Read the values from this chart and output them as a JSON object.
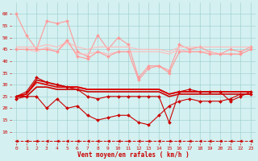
{
  "x": [
    0,
    1,
    2,
    3,
    4,
    5,
    6,
    7,
    8,
    9,
    10,
    11,
    12,
    13,
    14,
    15,
    16,
    17,
    18,
    19,
    20,
    21,
    22,
    23
  ],
  "series": [
    {
      "name": "rafales_max",
      "color": "#ff9999",
      "lw": 0.8,
      "marker": "D",
      "markersize": 2.0,
      "linestyle": "-",
      "values": [
        60,
        51,
        45,
        57,
        56,
        57,
        44,
        42,
        51,
        45,
        50,
        47,
        33,
        38,
        38,
        36,
        47,
        45,
        46,
        44,
        43,
        45,
        44,
        46
      ]
    },
    {
      "name": "rafales_upper",
      "color": "#ffbbbb",
      "lw": 0.8,
      "marker": null,
      "markersize": 0,
      "linestyle": "-",
      "values": [
        46,
        46,
        46,
        47,
        46,
        48,
        46,
        45,
        46,
        46,
        46,
        46,
        45,
        45,
        45,
        44,
        46,
        46,
        46,
        46,
        46,
        46,
        46,
        46
      ]
    },
    {
      "name": "rafales_lower",
      "color": "#ffbbbb",
      "lw": 0.8,
      "marker": null,
      "markersize": 0,
      "linestyle": "-",
      "values": [
        45,
        45,
        44,
        46,
        44,
        48,
        43,
        43,
        44,
        43,
        44,
        44,
        44,
        44,
        44,
        43,
        45,
        44,
        44,
        44,
        43,
        43,
        43,
        45
      ]
    },
    {
      "name": "rafales_mid",
      "color": "#ff9999",
      "lw": 0.8,
      "marker": "D",
      "markersize": 2.0,
      "linestyle": "-",
      "values": [
        45,
        45,
        45,
        45,
        44,
        49,
        42,
        41,
        44,
        42,
        44,
        44,
        32,
        37,
        38,
        35,
        44,
        44,
        44,
        43,
        43,
        43,
        43,
        45
      ]
    },
    {
      "name": "vent_upper1",
      "color": "#cc0000",
      "lw": 1.2,
      "marker": null,
      "markersize": 0,
      "linestyle": "-",
      "values": [
        25,
        26,
        32,
        31,
        30,
        29,
        29,
        28,
        28,
        28,
        28,
        28,
        28,
        28,
        28,
        26,
        27,
        27,
        27,
        27,
        27,
        27,
        27,
        27
      ]
    },
    {
      "name": "vent_upper2",
      "color": "#dd0000",
      "lw": 1.2,
      "marker": null,
      "markersize": 0,
      "linestyle": "-",
      "values": [
        25,
        26,
        31,
        30,
        29,
        29,
        29,
        28,
        28,
        28,
        28,
        28,
        28,
        28,
        28,
        26,
        27,
        27,
        27,
        27,
        27,
        27,
        27,
        27
      ]
    },
    {
      "name": "vent_lower",
      "color": "#cc0000",
      "lw": 1.2,
      "marker": null,
      "markersize": 0,
      "linestyle": "-",
      "values": [
        25,
        25,
        29,
        29,
        28,
        28,
        28,
        27,
        27,
        27,
        27,
        27,
        27,
        27,
        27,
        25,
        26,
        26,
        26,
        26,
        26,
        26,
        26,
        26
      ]
    },
    {
      "name": "vent_max",
      "color": "#cc0000",
      "lw": 0.8,
      "marker": "D",
      "markersize": 2.0,
      "linestyle": "-",
      "values": [
        25,
        27,
        33,
        31,
        30,
        29,
        28,
        25,
        24,
        25,
        25,
        25,
        25,
        25,
        25,
        14,
        27,
        28,
        27,
        27,
        27,
        23,
        25,
        27
      ]
    },
    {
      "name": "vent_min",
      "color": "#cc0000",
      "lw": 0.8,
      "marker": "D",
      "markersize": 2.0,
      "linestyle": "-",
      "values": [
        24,
        25,
        25,
        20,
        24,
        20,
        21,
        17,
        15,
        16,
        17,
        17,
        14,
        13,
        17,
        21,
        23,
        24,
        23,
        23,
        23,
        24,
        26,
        26
      ]
    },
    {
      "name": "dashed_bottom",
      "color": "#cc0000",
      "lw": 0.7,
      "marker": "<",
      "markersize": 2.5,
      "linestyle": "--",
      "values": [
        6,
        6,
        6,
        6,
        6,
        6,
        6,
        6,
        6,
        6,
        6,
        6,
        6,
        6,
        6,
        6,
        6,
        6,
        6,
        6,
        6,
        6,
        6,
        6
      ]
    }
  ],
  "xlabel": "Vent moyen/en rafales ( km/h )",
  "xlim": [
    -0.5,
    23.5
  ],
  "ylim": [
    5,
    65
  ],
  "yticks": [
    10,
    15,
    20,
    25,
    30,
    35,
    40,
    45,
    50,
    55,
    60
  ],
  "xticks": [
    0,
    1,
    2,
    3,
    4,
    5,
    6,
    7,
    8,
    9,
    10,
    11,
    12,
    13,
    14,
    15,
    16,
    17,
    18,
    19,
    20,
    21,
    22,
    23
  ],
  "bg_color": "#d4f0f0",
  "grid_color": "#99cccc",
  "xlabel_color": "#cc0000",
  "tick_color": "#cc0000"
}
